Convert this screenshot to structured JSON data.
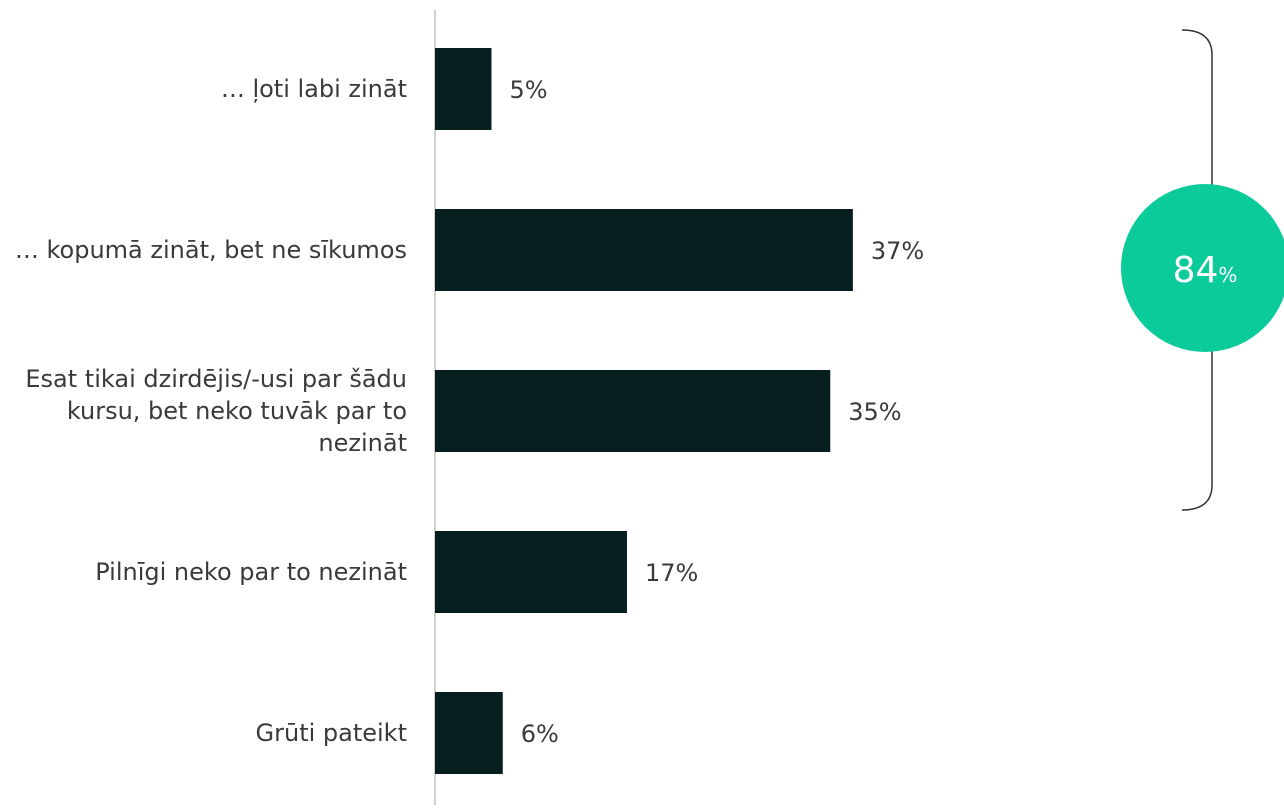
{
  "chart_data": {
    "type": "barh",
    "categories": [
      "… ļoti labi zināt",
      "… kopumā zināt, bet ne sīkumos",
      "Esat tikai dzirdējis/-usi par šādu kursu, bet neko tuvāk par to nezināt",
      "Pilnīgi neko par to nezināt",
      "Grūti pateikt"
    ],
    "values": [
      5,
      37,
      35,
      17,
      6
    ],
    "value_labels": [
      "5%",
      "37%",
      "35%",
      "17%",
      "6%"
    ],
    "color": "#061e1d",
    "xlim": [
      0,
      75
    ],
    "annotation": "84",
    "annotation_unit": "%",
    "annotation_color": "#0ccb9a"
  }
}
